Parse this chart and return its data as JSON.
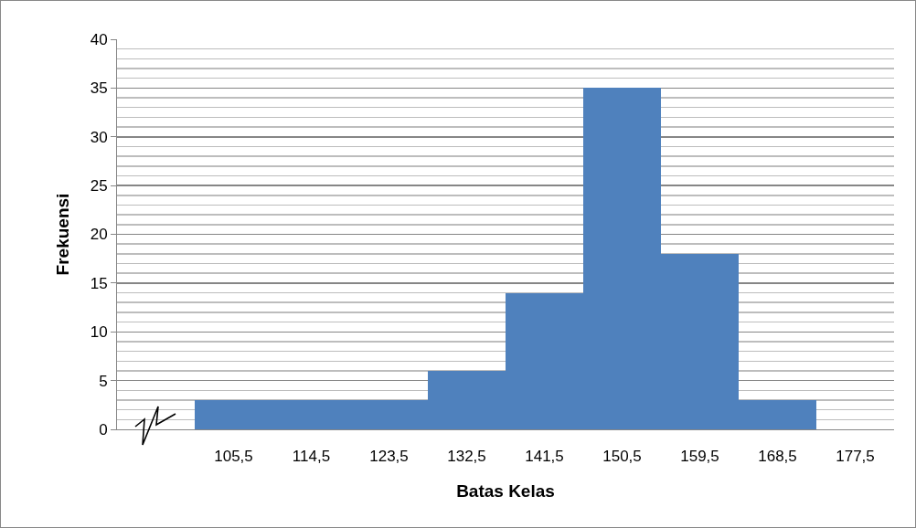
{
  "chart_data": {
    "type": "bar",
    "xlabel": "Batas Kelas",
    "ylabel": "Frekuensi",
    "categories": [
      null,
      "105,5",
      "114,5",
      "123,5",
      "132,5",
      "141,5",
      "150,5",
      "159,5",
      "168,5",
      "177,5"
    ],
    "values": [
      null,
      3,
      3,
      3,
      6,
      14,
      35,
      18,
      3,
      null
    ],
    "color": "#4f81bd",
    "ylim": [
      0,
      40
    ],
    "yticks": [
      0,
      5,
      10,
      15,
      20,
      25,
      30,
      35,
      40
    ],
    "grid": "y",
    "legend": false
  }
}
